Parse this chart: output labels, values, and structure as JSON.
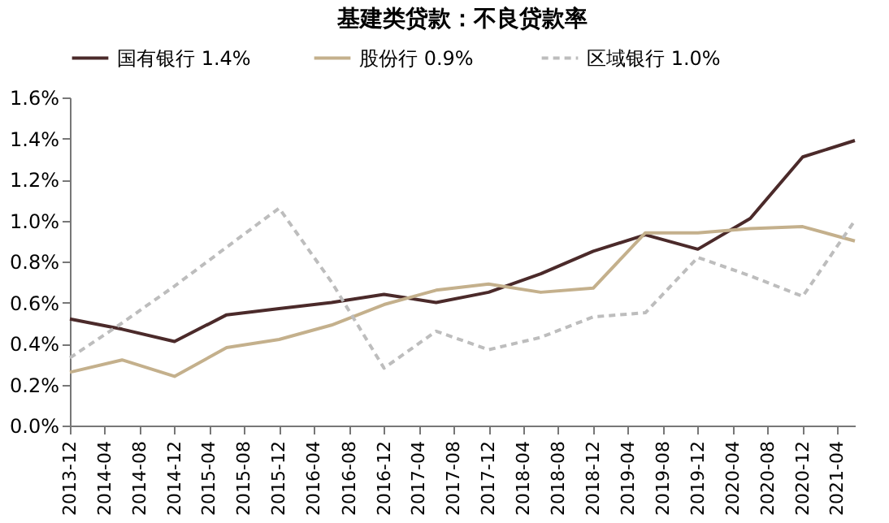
{
  "chart_data": {
    "type": "line",
    "title": "基建类贷款：不良贷款率",
    "x": [
      "2013-12",
      "2014-06",
      "2014-12",
      "2015-06",
      "2015-12",
      "2016-06",
      "2016-12",
      "2017-06",
      "2017-12",
      "2018-06",
      "2018-12",
      "2019-06",
      "2019-12",
      "2020-06",
      "2020-12",
      "2021-06"
    ],
    "series": [
      {
        "name": "国有银行  1.4%",
        "color": "#4b2a2a",
        "line_style": "solid",
        "values": [
          0.52,
          0.47,
          0.41,
          0.54,
          0.57,
          0.6,
          0.64,
          0.6,
          0.65,
          0.74,
          0.85,
          0.93,
          0.86,
          1.01,
          1.31,
          1.39
        ]
      },
      {
        "name": "股份行   0.9%",
        "color": "#c4b08c",
        "line_style": "solid",
        "values": [
          0.26,
          0.32,
          0.24,
          0.38,
          0.42,
          0.49,
          0.59,
          0.66,
          0.69,
          0.65,
          0.67,
          0.94,
          0.94,
          0.96,
          0.97,
          0.9
        ]
      },
      {
        "name": "区域银行  1.0%",
        "color": "#bdbdbd",
        "line_style": "dashed",
        "values": [
          0.33,
          0.5,
          0.68,
          0.87,
          1.06,
          0.7,
          0.28,
          0.46,
          0.37,
          0.43,
          0.53,
          0.55,
          0.82,
          0.73,
          0.63,
          1.0
        ]
      }
    ],
    "xlim": [
      "2013-12",
      "2021-06"
    ],
    "xticks": [
      "2013-12",
      "2014-04",
      "2014-08",
      "2014-12",
      "2015-04",
      "2015-08",
      "2015-12",
      "2016-04",
      "2016-08",
      "2016-12",
      "2017-04",
      "2017-08",
      "2017-12",
      "2018-04",
      "2018-08",
      "2018-12",
      "2019-04",
      "2019-08",
      "2019-12",
      "2020-04",
      "2020-08",
      "2020-12",
      "2021-04"
    ],
    "ylim": [
      0,
      1.6
    ],
    "yticks": [
      {
        "value": 0,
        "label": "0.0%"
      },
      {
        "value": 0.2,
        "label": "0.2%"
      },
      {
        "value": 0.4,
        "label": "0.4%"
      },
      {
        "value": 0.6,
        "label": "0.6%"
      },
      {
        "value": 0.8,
        "label": "0.8%"
      },
      {
        "value": 1.0,
        "label": "1.0%"
      },
      {
        "value": 1.2,
        "label": "1.2%"
      },
      {
        "value": 1.4,
        "label": "1.4%"
      },
      {
        "value": 1.6,
        "label": "1.6%"
      }
    ],
    "grid": false,
    "legend": "top",
    "marker": "none"
  }
}
